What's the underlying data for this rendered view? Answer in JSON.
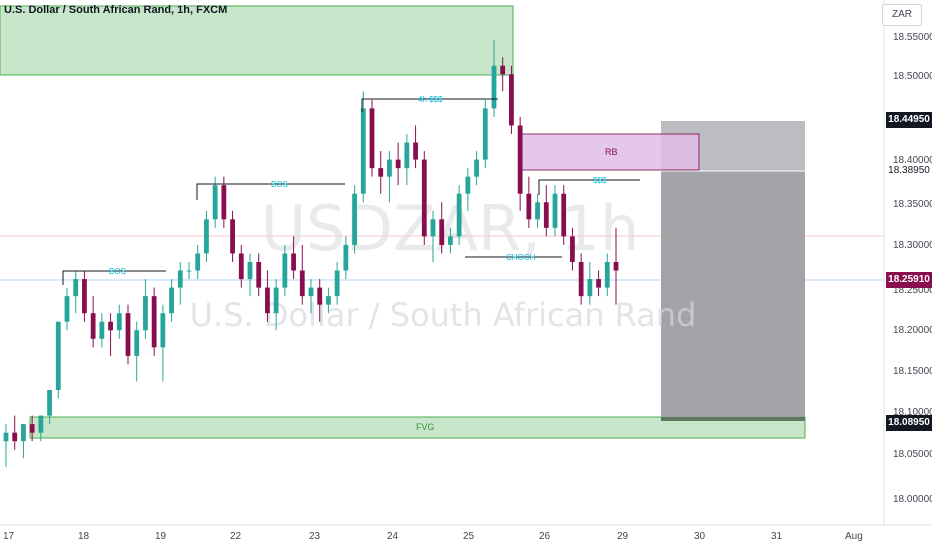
{
  "header": {
    "title": "U.S. Dollar / South African Rand, 1h, FXCM",
    "currency": "ZAR"
  },
  "watermark": {
    "symbol": "USDZAR, 1h",
    "description": "U.S. Dollar / South African Rand"
  },
  "price_axis": {
    "labels": [
      "18.55000",
      "18.50000",
      "18.40000",
      "18.35000",
      "18.30000",
      "18.25000",
      "18.20000",
      "18.15000",
      "18.10000",
      "18.05000",
      "18.00000"
    ],
    "tags": {
      "top_target": "18.44950",
      "entry": "18.38950",
      "current": "18.25910",
      "stop": "18.08950"
    }
  },
  "time_axis": {
    "labels": [
      "17",
      "18",
      "19",
      "22",
      "23",
      "24",
      "25",
      "26",
      "29",
      "30",
      "31",
      "Aug"
    ]
  },
  "annotations": {
    "bos1": "BOS",
    "bos2": "BOS",
    "sss1": "4h $$$",
    "sss2": "$$$",
    "choch": "CHOCH",
    "rb": "RB",
    "fvg": "FVG"
  },
  "colors": {
    "up": "#26a69a",
    "down": "#880e4f",
    "zone_green": "#c8e6c9",
    "zone_green_border": "#4caf50",
    "zone_pink": "#e1bee7",
    "zone_gray": "#9e9ea3",
    "label_cyan": "#00bcd4",
    "tag_red": "#880e4f",
    "tag_dark": "#131722"
  },
  "chart_data": {
    "type": "candlestick",
    "symbol": "USDZAR",
    "interval": "1h",
    "y_range": [
      17.97,
      18.57
    ],
    "candles": [
      [
        18.06,
        18.08,
        18.03,
        18.07
      ],
      [
        18.07,
        18.09,
        18.05,
        18.06
      ],
      [
        18.06,
        18.08,
        18.04,
        18.08
      ],
      [
        18.08,
        18.09,
        18.06,
        18.07
      ],
      [
        18.07,
        18.09,
        18.06,
        18.09
      ],
      [
        18.09,
        18.12,
        18.08,
        18.12
      ],
      [
        18.12,
        18.2,
        18.11,
        18.2
      ],
      [
        18.2,
        18.24,
        18.19,
        18.23
      ],
      [
        18.23,
        18.26,
        18.21,
        18.25
      ],
      [
        18.25,
        18.26,
        18.2,
        18.21
      ],
      [
        18.21,
        18.23,
        18.17,
        18.18
      ],
      [
        18.18,
        18.21,
        18.17,
        18.2
      ],
      [
        18.2,
        18.21,
        18.16,
        18.19
      ],
      [
        18.19,
        18.22,
        18.18,
        18.21
      ],
      [
        18.21,
        18.22,
        18.15,
        18.16
      ],
      [
        18.16,
        18.2,
        18.13,
        18.19
      ],
      [
        18.19,
        18.25,
        18.18,
        18.23
      ],
      [
        18.23,
        18.24,
        18.16,
        18.17
      ],
      [
        18.17,
        18.22,
        18.13,
        18.21
      ],
      [
        18.21,
        18.25,
        18.2,
        18.24
      ],
      [
        18.24,
        18.27,
        18.22,
        18.26
      ],
      [
        18.26,
        18.27,
        18.25,
        18.26
      ],
      [
        18.26,
        18.29,
        18.25,
        18.28
      ],
      [
        18.28,
        18.33,
        18.27,
        18.32
      ],
      [
        18.32,
        18.37,
        18.31,
        18.36
      ],
      [
        18.36,
        18.37,
        18.31,
        18.32
      ],
      [
        18.32,
        18.33,
        18.27,
        18.28
      ],
      [
        18.28,
        18.29,
        18.24,
        18.25
      ],
      [
        18.25,
        18.28,
        18.23,
        18.27
      ],
      [
        18.27,
        18.28,
        18.23,
        18.24
      ],
      [
        18.24,
        18.26,
        18.2,
        18.21
      ],
      [
        18.21,
        18.25,
        18.19,
        18.24
      ],
      [
        18.24,
        18.29,
        18.23,
        18.28
      ],
      [
        18.28,
        18.3,
        18.25,
        18.26
      ],
      [
        18.26,
        18.29,
        18.22,
        18.23
      ],
      [
        18.23,
        18.25,
        18.21,
        18.24
      ],
      [
        18.24,
        18.25,
        18.2,
        18.22
      ],
      [
        18.22,
        18.24,
        18.21,
        18.23
      ],
      [
        18.23,
        18.27,
        18.22,
        18.26
      ],
      [
        18.26,
        18.3,
        18.25,
        18.29
      ],
      [
        18.29,
        18.36,
        18.28,
        18.35
      ],
      [
        18.35,
        18.47,
        18.34,
        18.45
      ],
      [
        18.45,
        18.46,
        18.37,
        18.38
      ],
      [
        18.38,
        18.4,
        18.35,
        18.37
      ],
      [
        18.37,
        18.4,
        18.34,
        18.39
      ],
      [
        18.39,
        18.41,
        18.36,
        18.38
      ],
      [
        18.38,
        18.42,
        18.36,
        18.41
      ],
      [
        18.41,
        18.43,
        18.38,
        18.39
      ],
      [
        18.39,
        18.4,
        18.29,
        18.3
      ],
      [
        18.3,
        18.33,
        18.27,
        18.32
      ],
      [
        18.32,
        18.34,
        18.28,
        18.29
      ],
      [
        18.29,
        18.31,
        18.28,
        18.3
      ],
      [
        18.3,
        18.36,
        18.29,
        18.35
      ],
      [
        18.35,
        18.38,
        18.33,
        18.37
      ],
      [
        18.37,
        18.4,
        18.36,
        18.39
      ],
      [
        18.39,
        18.46,
        18.38,
        18.45
      ],
      [
        18.45,
        18.53,
        18.44,
        18.5
      ],
      [
        18.5,
        18.51,
        18.47,
        18.49
      ],
      [
        18.49,
        18.5,
        18.42,
        18.43
      ],
      [
        18.43,
        18.44,
        18.33,
        18.35
      ],
      [
        18.35,
        18.37,
        18.31,
        18.32
      ],
      [
        18.32,
        18.35,
        18.31,
        18.34
      ],
      [
        18.34,
        18.36,
        18.3,
        18.31
      ],
      [
        18.31,
        18.36,
        18.3,
        18.35
      ],
      [
        18.35,
        18.36,
        18.29,
        18.3
      ],
      [
        18.3,
        18.31,
        18.26,
        18.27
      ],
      [
        18.27,
        18.28,
        18.22,
        18.23
      ],
      [
        18.23,
        18.27,
        18.22,
        18.25
      ],
      [
        18.25,
        18.26,
        18.23,
        18.24
      ],
      [
        18.24,
        18.28,
        18.23,
        18.27
      ],
      [
        18.27,
        18.31,
        18.22,
        18.26
      ]
    ]
  }
}
